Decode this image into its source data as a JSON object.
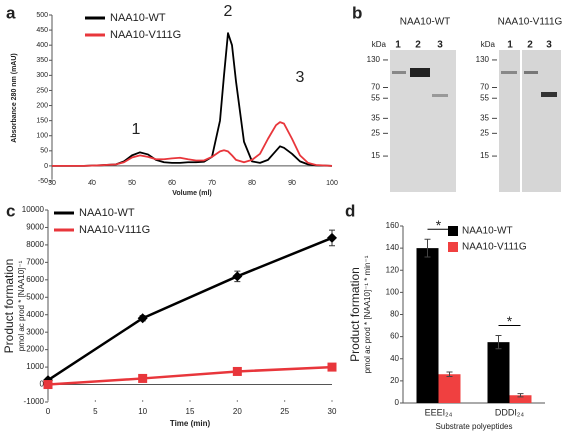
{
  "chart_data": [
    {
      "type": "line",
      "panel": "a",
      "xlabel": "Volume (ml)",
      "ylabel": "Absorbance 280 nm (mAU)",
      "x": [
        30,
        34,
        38,
        42,
        46,
        48,
        50,
        52,
        54,
        56,
        58,
        60,
        62,
        64,
        66,
        68,
        70,
        72,
        73,
        74,
        75,
        76,
        78,
        80,
        82,
        84,
        86,
        87,
        88,
        90,
        92,
        94,
        96,
        100
      ],
      "series": [
        {
          "name": "NAA10-WT",
          "color": "#000000",
          "values": [
            0,
            0,
            0,
            2,
            5,
            15,
            35,
            45,
            38,
            20,
            12,
            10,
            10,
            12,
            12,
            14,
            30,
            150,
            300,
            440,
            400,
            280,
            80,
            15,
            10,
            20,
            50,
            65,
            60,
            40,
            15,
            5,
            2,
            0
          ]
        },
        {
          "name": "NAA10-V111G",
          "color": "#e8363b",
          "values": [
            0,
            0,
            0,
            2,
            5,
            12,
            28,
            35,
            30,
            22,
            22,
            25,
            27,
            22,
            18,
            18,
            30,
            48,
            52,
            48,
            35,
            20,
            12,
            20,
            40,
            90,
            135,
            145,
            140,
            90,
            35,
            10,
            3,
            0
          ]
        }
      ],
      "annotations": [
        "1",
        "2",
        "3"
      ],
      "xlim": [
        30,
        100
      ],
      "xticks": [
        30,
        40,
        50,
        60,
        70,
        80,
        90,
        100
      ],
      "ylim": [
        -50,
        500
      ],
      "yticks": [
        -50,
        0,
        50,
        100,
        150,
        200,
        250,
        300,
        350,
        400,
        450,
        500
      ],
      "legend": "upper left"
    },
    {
      "type": "gel",
      "panel": "b",
      "marker_label": "kDa",
      "markers": [
        130,
        70,
        55,
        35,
        25,
        15
      ],
      "ylim": [
        7,
        170
      ],
      "log_scale": true,
      "gels": [
        {
          "title": "NAA10-WT",
          "lanes": [
            "1",
            "2",
            "3"
          ]
        },
        {
          "title": "NAA10-V111G",
          "lanes": [
            "1",
            "2",
            "3"
          ]
        }
      ]
    },
    {
      "type": "line",
      "panel": "c",
      "xlabel": "Time (min)",
      "ylabel": "Product formation",
      "ylabel_sub": "pmol ac prod * [NAA10]⁻¹",
      "x": [
        0,
        10,
        20,
        30
      ],
      "series": [
        {
          "name": "NAA10-WT",
          "color": "#000000",
          "marker": "diamond",
          "values": [
            250,
            3800,
            6200,
            8400
          ],
          "errors": [
            100,
            150,
            300,
            450
          ]
        },
        {
          "name": "NAA10-V111G",
          "color": "#e8363b",
          "marker": "square",
          "values": [
            0,
            350,
            750,
            1000
          ],
          "errors": [
            50,
            60,
            80,
            100
          ]
        }
      ],
      "xlim": [
        0,
        30
      ],
      "xticks": [
        0,
        5,
        10,
        15,
        20,
        25,
        30
      ],
      "ylim": [
        -1000,
        10000
      ],
      "yticks": [
        -1000,
        0,
        1000,
        2000,
        3000,
        4000,
        5000,
        6000,
        7000,
        8000,
        9000,
        10000
      ],
      "legend": "upper left"
    },
    {
      "type": "bar",
      "panel": "d",
      "xlabel": "Substrate polyeptides",
      "ylabel": "Product formation",
      "ylabel_sub": "pmol ac prod * [NAA10]⁻¹ * min⁻¹",
      "categories": [
        "EEEI₂₄",
        "DDDI₂₄"
      ],
      "series": [
        {
          "name": "NAA10-WT",
          "color": "#000000",
          "values": [
            140,
            55
          ],
          "errors": [
            8,
            6
          ]
        },
        {
          "name": "NAA10-V111G",
          "color": "#f04040",
          "values": [
            26,
            7
          ],
          "errors": [
            2,
            1.5
          ]
        }
      ],
      "annotations": [
        "*",
        "*"
      ],
      "ylim": [
        0,
        160
      ],
      "yticks": [
        0,
        20,
        40,
        60,
        80,
        100,
        120,
        140,
        160
      ],
      "legend": "upper right"
    }
  ]
}
